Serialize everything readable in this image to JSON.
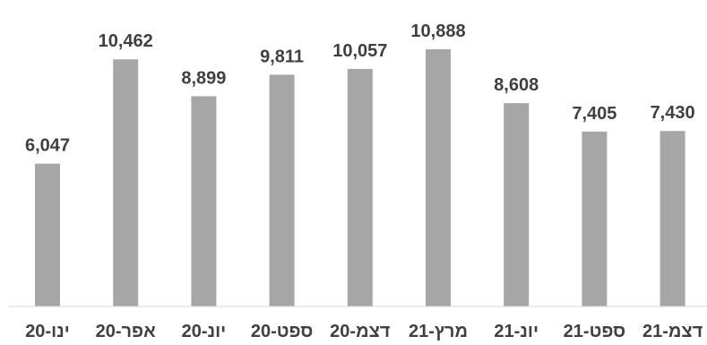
{
  "chart_data": {
    "type": "bar",
    "title": "",
    "xlabel": "",
    "ylabel": "",
    "categories": [
      "ינו-20",
      "אפר-20",
      "יונ-20",
      "ספט-20",
      "דצמ-20",
      "מרץ-21",
      "יונ-21",
      "ספט-21",
      "דצמ-21"
    ],
    "values": [
      6047,
      10462,
      8899,
      9811,
      10057,
      10888,
      8608,
      7405,
      7430
    ],
    "value_labels": [
      "6,047",
      "10,462",
      "8,899",
      "9,811",
      "10,057",
      "10,888",
      "8,608",
      "7,405",
      "7,430"
    ],
    "ylim": [
      0,
      12000
    ],
    "grid": false,
    "legend": "none",
    "bar_color": "#a6a6a6",
    "label_color": "#404040",
    "axis_color": "#d9d9d9"
  }
}
